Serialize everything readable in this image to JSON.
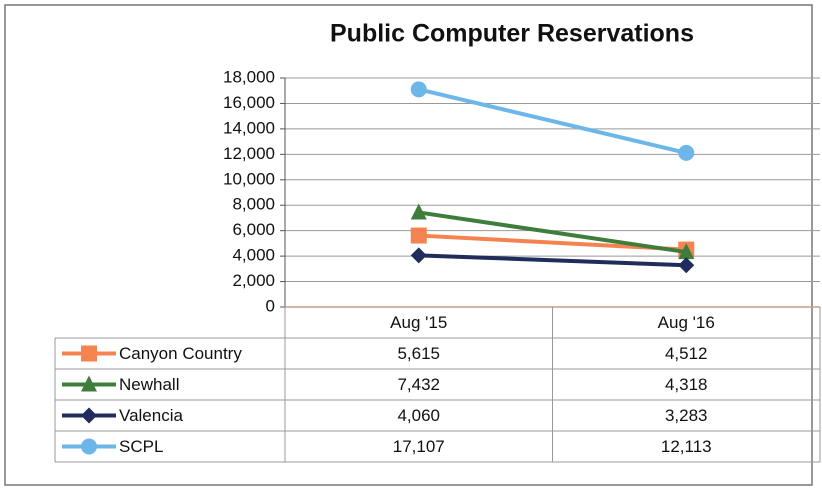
{
  "chart_data": {
    "type": "line",
    "title": "Public Computer Reservations",
    "categories": [
      "Aug '15",
      "Aug '16"
    ],
    "series": [
      {
        "name": "Canyon Country",
        "color": "#f4834f",
        "marker": "square",
        "values": [
          5615,
          4512
        ],
        "value_labels": [
          "5,615",
          "4,512"
        ]
      },
      {
        "name": "Newhall",
        "color": "#3e7d3b",
        "marker": "triangle",
        "values": [
          7432,
          4318
        ],
        "value_labels": [
          "7,432",
          "4,318"
        ]
      },
      {
        "name": "Valencia",
        "color": "#1f2c5c",
        "marker": "diamond",
        "values": [
          4060,
          3283
        ],
        "value_labels": [
          "4,060",
          "3,283"
        ]
      },
      {
        "name": "SCPL",
        "color": "#6db6ea",
        "marker": "circle",
        "values": [
          17107,
          12113
        ],
        "value_labels": [
          "17,107",
          "12,113"
        ]
      }
    ],
    "ylim": [
      0,
      18000
    ],
    "yticks": [
      0,
      {
        "value": 2000,
        "label": "2,000"
      },
      {
        "value": 4000,
        "label": "4,000"
      },
      {
        "value": 6000,
        "label": "6,000"
      },
      {
        "value": 8000,
        "label": "8,000"
      },
      {
        "value": 10000,
        "label": "10,000"
      },
      {
        "value": 12000,
        "label": "12,000"
      },
      {
        "value": 14000,
        "label": "14,000"
      },
      {
        "value": 16000,
        "label": "16,000"
      },
      {
        "value": 18000,
        "label": "18,000"
      }
    ],
    "grid": true
  }
}
